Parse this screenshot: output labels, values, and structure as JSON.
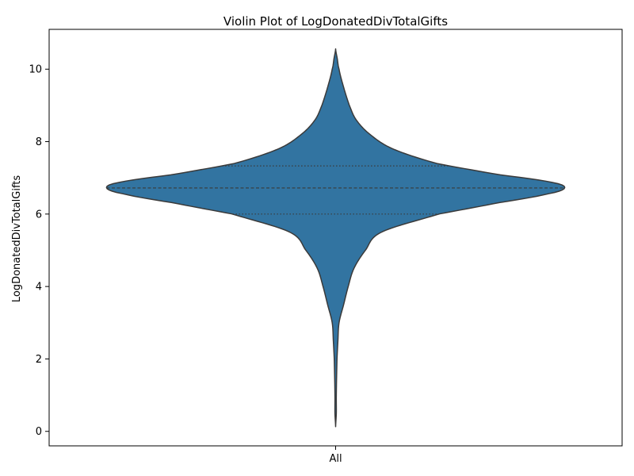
{
  "chart_data": {
    "type": "violin",
    "title": "Violin Plot of LogDonatedDivTotalGifts",
    "xlabel": "",
    "ylabel": "LogDonatedDivTotalGifts",
    "categories": [
      "All"
    ],
    "ylim": [
      -0.4,
      11.1
    ],
    "y_ticks": [
      0,
      2,
      4,
      6,
      8,
      10
    ],
    "grid": false,
    "fill_color": "#3274a1",
    "edge_color": "#3a3a3a",
    "quartiles": {
      "q1": 6.0,
      "median": 6.72,
      "q3": 7.33
    },
    "density_profile": [
      [
        0.13,
        0.0
      ],
      [
        0.5,
        0.003
      ],
      [
        1.0,
        0.003
      ],
      [
        2.0,
        0.006
      ],
      [
        2.5,
        0.01
      ],
      [
        3.0,
        0.015
      ],
      [
        3.5,
        0.035
      ],
      [
        4.0,
        0.055
      ],
      [
        4.5,
        0.08
      ],
      [
        5.0,
        0.13
      ],
      [
        5.5,
        0.2
      ],
      [
        6.0,
        0.45
      ],
      [
        6.3,
        0.7
      ],
      [
        6.55,
        0.92
      ],
      [
        6.72,
        1.0
      ],
      [
        6.88,
        0.94
      ],
      [
        7.1,
        0.7
      ],
      [
        7.4,
        0.44
      ],
      [
        7.8,
        0.25
      ],
      [
        8.2,
        0.15
      ],
      [
        8.6,
        0.09
      ],
      [
        9.0,
        0.06
      ],
      [
        9.5,
        0.035
      ],
      [
        10.0,
        0.015
      ],
      [
        10.3,
        0.007
      ],
      [
        10.56,
        0.0
      ]
    ]
  }
}
